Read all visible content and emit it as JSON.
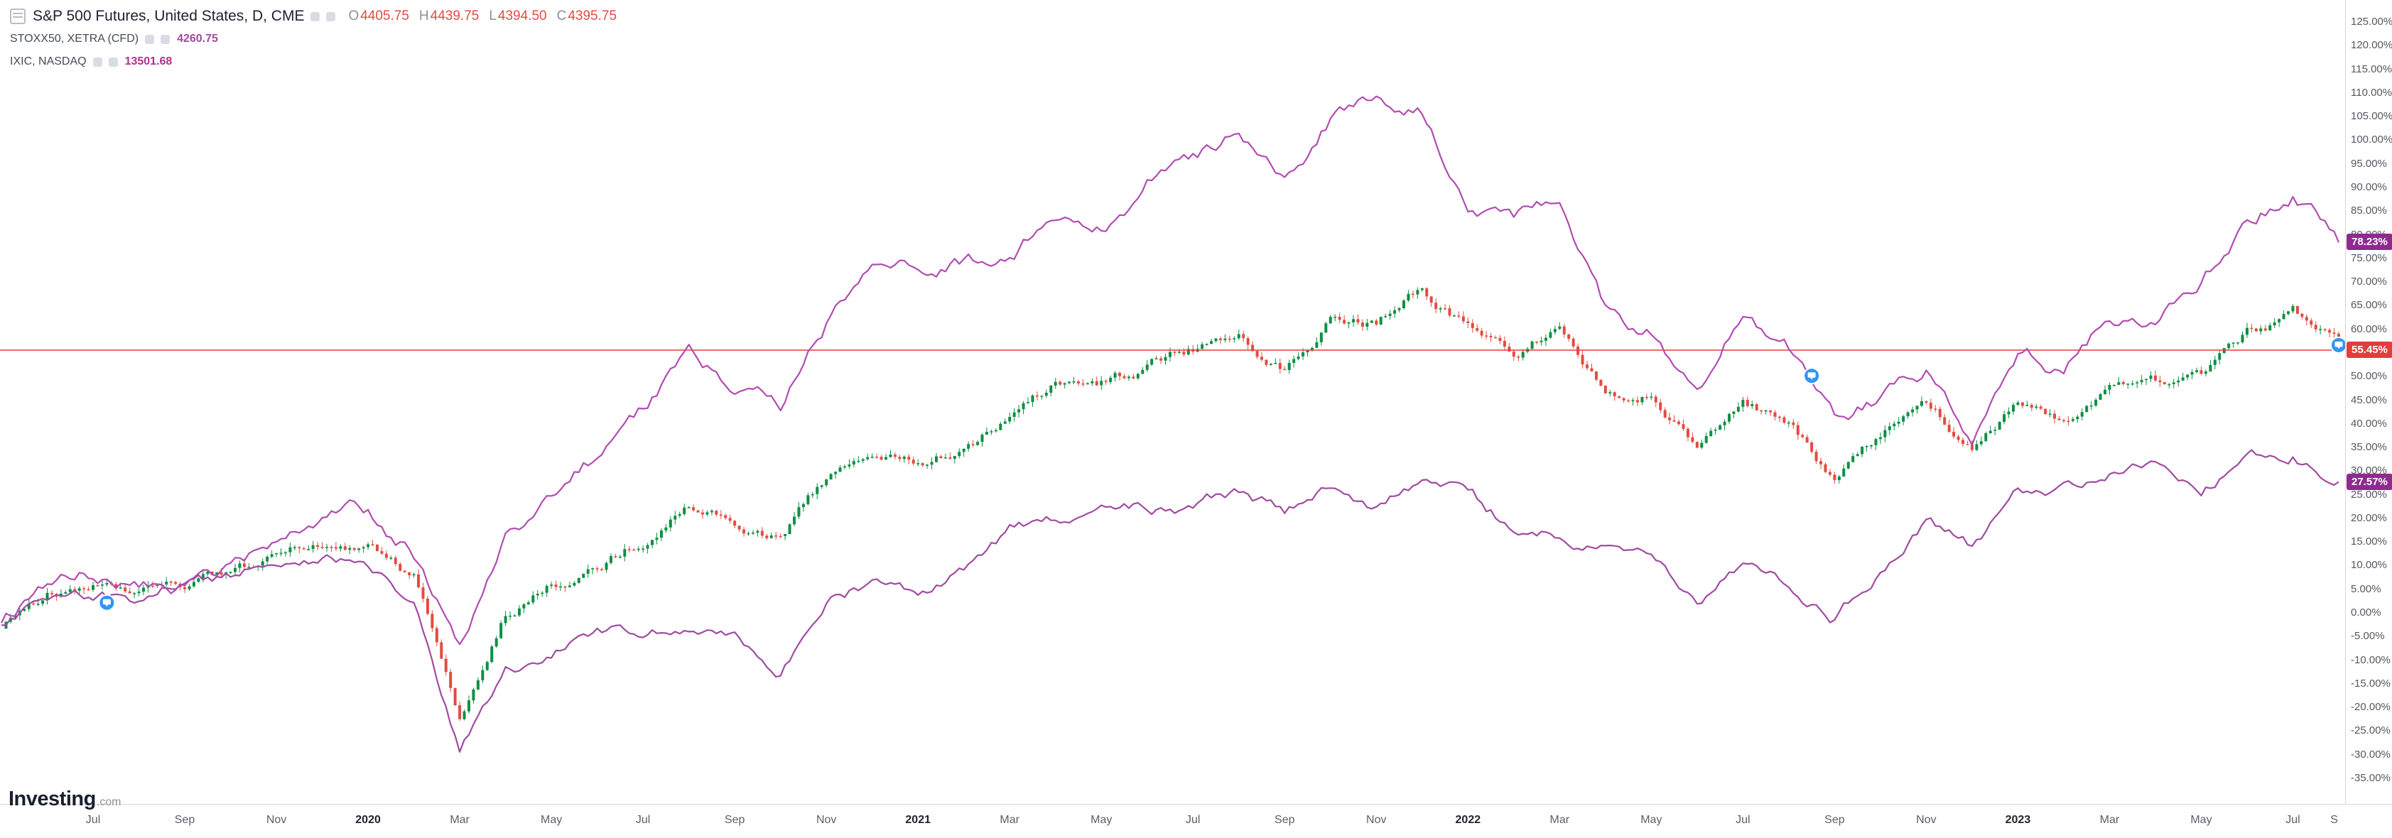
{
  "legend": {
    "main_title": "S&P 500 Futures, United States, D, CME",
    "ohlc": {
      "o_label": "O",
      "o": "4405.75",
      "h_label": "H",
      "h": "4439.75",
      "l_label": "L",
      "l": "4394.50",
      "c_label": "C",
      "c": "4395.75"
    },
    "overlays": [
      {
        "name": "STOXX50, XETRA (CFD)",
        "value": "4260.75"
      },
      {
        "name": "IXIC, NASDAQ",
        "value": "13501.68"
      }
    ]
  },
  "logo": {
    "brand": "Investing",
    "suffix": ".com"
  },
  "colors": {
    "candle_up": "#0e8f44",
    "candle_down": "#e24c42",
    "nasdaq_line": "#b14cb1",
    "stoxx_line": "#a04ba0",
    "price_line_red": "#e23d3d",
    "tag_purple": "#8f2a8f",
    "tag_red": "#e23d3d",
    "marker_blue": "#2f96f3",
    "ohlc_value": "#e24c42",
    "stoxx_value": "#a04ba0",
    "nasdaq_value": "#b1308f"
  },
  "axis_tags": [
    {
      "label": "78.23%",
      "value": 78.23,
      "color_key": "tag_purple"
    },
    {
      "label": "55.45%",
      "value": 55.45,
      "color_key": "tag_red"
    },
    {
      "label": "27.57%",
      "value": 27.57,
      "color_key": "tag_purple"
    }
  ],
  "chart_data": {
    "type": "mixed",
    "title": "S&P 500 Futures, United States, D, CME (percent change) with STOXX50 and NASDAQ Composite overlays",
    "y_axis": {
      "min": -35,
      "max": 125,
      "step": 5,
      "unit": "%"
    },
    "grid": false,
    "legend_position": "top-left",
    "current_price_line": 55.45,
    "x_monthly": [
      "2019-05",
      "2019-06",
      "2019-07",
      "2019-08",
      "2019-09",
      "2019-10",
      "2019-11",
      "2019-12",
      "2020-01",
      "2020-02",
      "2020-03",
      "2020-04",
      "2020-05",
      "2020-06",
      "2020-07",
      "2020-08",
      "2020-09",
      "2020-10",
      "2020-11",
      "2020-12",
      "2021-01",
      "2021-02",
      "2021-03",
      "2021-04",
      "2021-05",
      "2021-06",
      "2021-07",
      "2021-08",
      "2021-09",
      "2021-10",
      "2021-11",
      "2021-12",
      "2022-01",
      "2022-02",
      "2022-03",
      "2022-04",
      "2022-05",
      "2022-06",
      "2022-07",
      "2022-08",
      "2022-09",
      "2022-10",
      "2022-11",
      "2022-12",
      "2023-01",
      "2023-02",
      "2023-03",
      "2023-04",
      "2023-05",
      "2023-06",
      "2023-07",
      "2023-08"
    ],
    "series": [
      {
        "name": "S&P 500 Futures (% change)",
        "type": "candlestick",
        "color_up_key": "candle_up",
        "color_down_key": "candle_down",
        "last_close_pct": 55.45,
        "values": [
          -2.7,
          4.0,
          5.4,
          3.5,
          5.3,
          7.4,
          11.1,
          14.2,
          14.1,
          8,
          -22,
          0,
          6,
          9.6,
          15.7,
          23.8,
          18.9,
          15.6,
          28.1,
          32.8,
          31.3,
          34.8,
          40.5,
          47.8,
          48.7,
          52.0,
          55.4,
          59.9,
          52.3,
          62.8,
          61.5,
          68.5,
          59.7,
          54.7,
          60.2,
          46.1,
          46.1,
          33.8,
          46.1,
          39.9,
          26.8,
          36.9,
          44.3,
          35.8,
          44.2,
          40.4,
          45.3,
          47.4,
          47.8,
          57.4,
          62.3,
          55.45
        ]
      },
      {
        "name": "IXIC NASDAQ Composite (% change)",
        "type": "line",
        "color_key": "nasdaq_line",
        "last_value_pct": 78.23,
        "values": [
          -1.6,
          5.7,
          7.9,
          5.1,
          5.6,
          9.5,
          14.4,
          18.4,
          20.8,
          13.1,
          -8,
          15,
          25.3,
          32.8,
          41.8,
          55.4,
          47.4,
          44.0,
          61.0,
          70.1,
          72.5,
          74.1,
          74.9,
          84.3,
          81.5,
          91.4,
          93.7,
          101.4,
          90.7,
          104.6,
          110,
          106.5,
          88.0,
          81.5,
          87.7,
          62.8,
          59.5,
          45.6,
          63.6,
          56.0,
          39.6,
          45.0,
          51.4,
          38.1,
          52.9,
          51.2,
          61.3,
          61.4,
          70.7,
          82.0,
          89.4,
          78.23
        ]
      },
      {
        "name": "STOXX50 XETRA CFD (% change)",
        "type": "line",
        "color_key": "stoxx_line",
        "last_value_pct": 27.57,
        "values": [
          -1.8,
          4.0,
          3.8,
          2.6,
          6.9,
          7.9,
          10.9,
          12.1,
          9.0,
          0,
          -31,
          -12,
          -8.7,
          -3.2,
          -5.0,
          -2.0,
          -4.4,
          -11.4,
          4.6,
          6.4,
          4.2,
          8.9,
          17.3,
          19.0,
          20.9,
          21.7,
          22.4,
          25.6,
          21.2,
          27.3,
          21.6,
          28.7,
          24.9,
          17.5,
          16.8,
          13.8,
          13.4,
          3.4,
          11.0,
          5.3,
          -0.7,
          8.3,
          18.7,
          13.6,
          24.6,
          26.9,
          29.2,
          30.5,
          26.3,
          31.7,
          33.8,
          27.57
        ]
      }
    ],
    "time_ticks": [
      {
        "label": "Jul",
        "i": 2,
        "year": false
      },
      {
        "label": "Sep",
        "i": 4,
        "year": false
      },
      {
        "label": "Nov",
        "i": 6,
        "year": false
      },
      {
        "label": "2020",
        "i": 8,
        "year": true
      },
      {
        "label": "Mar",
        "i": 10,
        "year": false
      },
      {
        "label": "May",
        "i": 12,
        "year": false
      },
      {
        "label": "Jul",
        "i": 14,
        "year": false
      },
      {
        "label": "Sep",
        "i": 16,
        "year": false
      },
      {
        "label": "Nov",
        "i": 18,
        "year": false
      },
      {
        "label": "2021",
        "i": 20,
        "year": true
      },
      {
        "label": "Mar",
        "i": 22,
        "year": false
      },
      {
        "label": "May",
        "i": 24,
        "year": false
      },
      {
        "label": "Jul",
        "i": 26,
        "year": false
      },
      {
        "label": "Sep",
        "i": 28,
        "year": false
      },
      {
        "label": "Nov",
        "i": 30,
        "year": false
      },
      {
        "label": "2022",
        "i": 32,
        "year": true
      },
      {
        "label": "Mar",
        "i": 34,
        "year": false
      },
      {
        "label": "May",
        "i": 36,
        "year": false
      },
      {
        "label": "Jul",
        "i": 38,
        "year": false
      },
      {
        "label": "Sep",
        "i": 40,
        "year": false
      },
      {
        "label": "Nov",
        "i": 42,
        "year": false
      },
      {
        "label": "2023",
        "i": 44,
        "year": true
      },
      {
        "label": "Mar",
        "i": 46,
        "year": false
      },
      {
        "label": "May",
        "i": 48,
        "year": false
      },
      {
        "label": "Jul",
        "i": 50,
        "year": false
      },
      {
        "label": "S",
        "i": 50.9,
        "year": false
      }
    ],
    "markers": [
      {
        "i": 2.3,
        "v": 2
      },
      {
        "i": 39.5,
        "v": 50
      },
      {
        "i": 51,
        "v": 56.5
      }
    ]
  }
}
